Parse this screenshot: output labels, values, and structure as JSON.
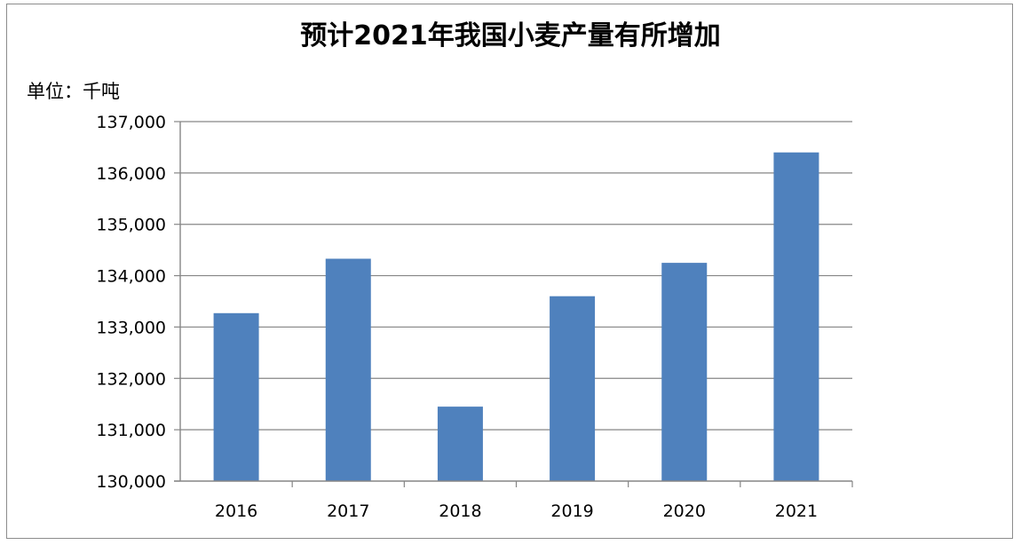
{
  "chart_data": {
    "type": "bar",
    "title": "预计2021年我国小麦产量有所增加",
    "unit_label": "单位：千吨",
    "categories": [
      "2016",
      "2017",
      "2018",
      "2019",
      "2020",
      "2021"
    ],
    "values": [
      133270,
      134330,
      131450,
      133600,
      134250,
      136400
    ],
    "ylim": [
      130000,
      137000
    ],
    "yticks": [
      "130,000",
      "131,000",
      "132,000",
      "133,000",
      "134,000",
      "135,000",
      "136,000",
      "137,000"
    ],
    "xlabel": "",
    "ylabel": "",
    "grid": true,
    "legend": "none",
    "bar_color": "#4f81bd",
    "grid_color": "#868686"
  }
}
